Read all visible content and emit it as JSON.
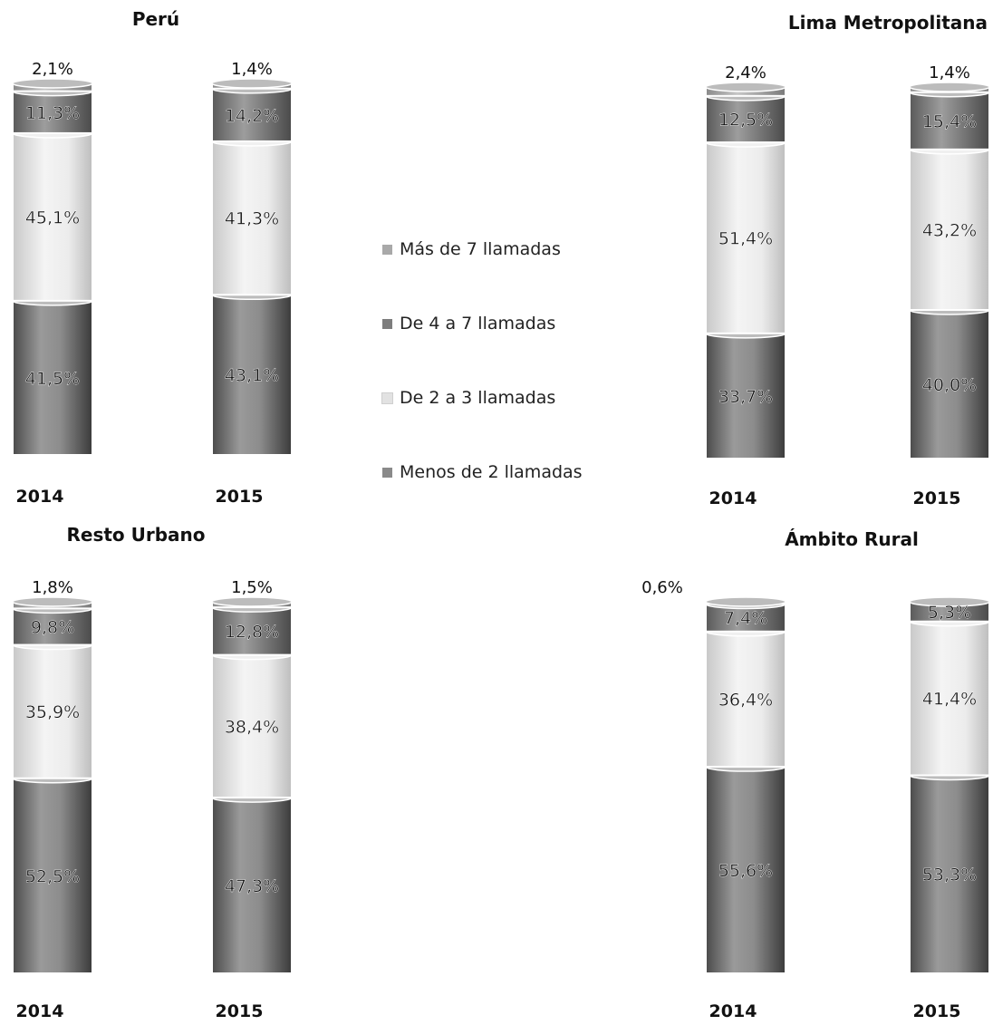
{
  "legend": {
    "items": [
      {
        "label": "Más de 7 llamadas",
        "color": "#a9a9a9"
      },
      {
        "label": "De 4 a 7 llamadas",
        "color": "#7d7d7d"
      },
      {
        "label": "De 2 a 3 llamadas",
        "color": "#e2e2e2"
      },
      {
        "label": "Menos de 2 llamadas",
        "color": "#8a8a8a"
      }
    ]
  },
  "chart_data": [
    {
      "type": "bar",
      "stacked": true,
      "title": "Perú",
      "categories": [
        "2014",
        "2015"
      ],
      "series": [
        {
          "name": "Menos de 2 llamadas",
          "values": [
            41.5,
            43.1
          ],
          "labels": [
            "41,5%",
            "43,1%"
          ]
        },
        {
          "name": "De 2 a 3 llamadas",
          "values": [
            45.1,
            41.3
          ],
          "labels": [
            "45,1%",
            "41,3%"
          ]
        },
        {
          "name": "De 4 a 7 llamadas",
          "values": [
            11.3,
            14.2
          ],
          "labels": [
            "11,3%",
            "14,2%"
          ]
        },
        {
          "name": "Más de 7 llamadas",
          "values": [
            2.1,
            1.4
          ],
          "labels": [
            "2,1%",
            "1,4%"
          ]
        }
      ]
    },
    {
      "type": "bar",
      "stacked": true,
      "title": "Lima Metropolitana",
      "categories": [
        "2014",
        "2015"
      ],
      "series": [
        {
          "name": "Menos de 2 llamadas",
          "values": [
            33.7,
            40.0
          ],
          "labels": [
            "33,7%",
            "40,0%"
          ]
        },
        {
          "name": "De 2 a 3 llamadas",
          "values": [
            51.4,
            43.2
          ],
          "labels": [
            "51,4%",
            "43,2%"
          ]
        },
        {
          "name": "De 4 a 7 llamadas",
          "values": [
            12.5,
            15.4
          ],
          "labels": [
            "12,5%",
            "15,4%"
          ]
        },
        {
          "name": "Más de 7 llamadas",
          "values": [
            2.4,
            1.4
          ],
          "labels": [
            "2,4%",
            "1,4%"
          ]
        }
      ]
    },
    {
      "type": "bar",
      "stacked": true,
      "title": "Resto Urbano",
      "categories": [
        "2014",
        "2015"
      ],
      "series": [
        {
          "name": "Menos de 2 llamadas",
          "values": [
            52.5,
            47.3
          ],
          "labels": [
            "52,5%",
            "47,3%"
          ]
        },
        {
          "name": "De 2 a 3 llamadas",
          "values": [
            35.9,
            38.4
          ],
          "labels": [
            "35,9%",
            "38,4%"
          ]
        },
        {
          "name": "De 4 a 7 llamadas",
          "values": [
            9.8,
            12.8
          ],
          "labels": [
            "9,8%",
            "12,8%"
          ]
        },
        {
          "name": "Más de 7 llamadas",
          "values": [
            1.8,
            1.5
          ],
          "labels": [
            "1,8%",
            "1,5%"
          ]
        }
      ]
    },
    {
      "type": "bar",
      "stacked": true,
      "title": "Ámbito Rural",
      "categories": [
        "2014",
        "2015"
      ],
      "series": [
        {
          "name": "Menos de 2 llamadas",
          "values": [
            55.6,
            53.3
          ],
          "labels": [
            "55,6%",
            "53,3%"
          ]
        },
        {
          "name": "De 2 a 3 llamadas",
          "values": [
            36.4,
            41.4
          ],
          "labels": [
            "36,4%",
            "41,4%"
          ]
        },
        {
          "name": "De 4 a 7 llamadas",
          "values": [
            7.4,
            5.3
          ],
          "labels": [
            "7,4%",
            "5,3%"
          ]
        },
        {
          "name": "Más de 7 llamadas",
          "values": [
            0.6,
            0.0
          ],
          "labels": [
            "0,6%",
            ""
          ]
        }
      ]
    }
  ]
}
